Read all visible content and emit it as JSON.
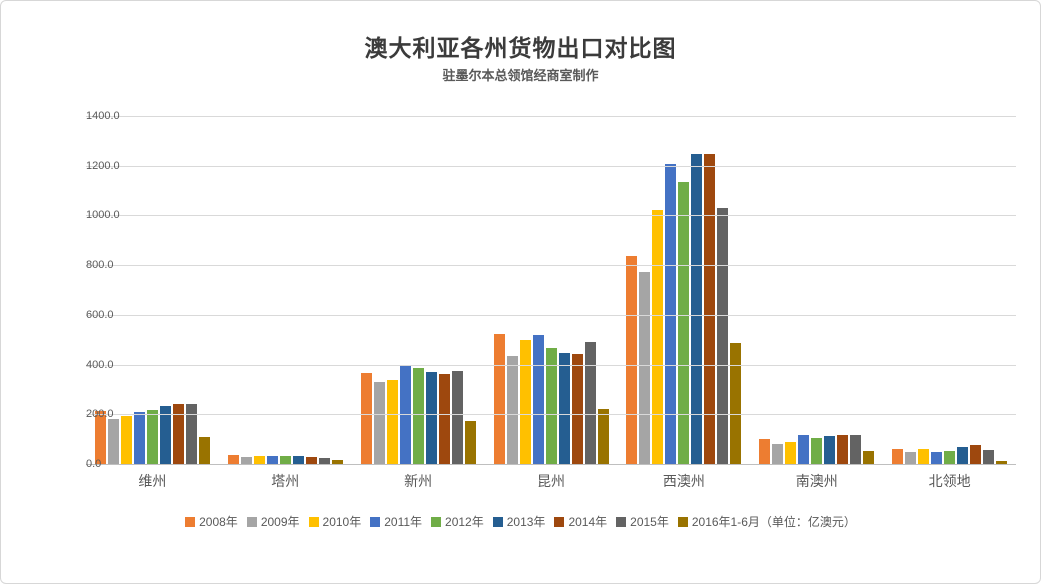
{
  "chart_data": {
    "type": "bar",
    "title": "澳大利亚各州货物出口对比图",
    "subtitle": "驻墨尔本总领馆经商室制作",
    "unit_note": "（单位：亿澳元）",
    "categories": [
      "维州",
      "塔州",
      "新州",
      "昆州",
      "西澳州",
      "南澳州",
      "北领地"
    ],
    "series": [
      {
        "name": "2008年",
        "color": "#ED7D31",
        "values": [
          215,
          35,
          365,
          525,
          838,
          99,
          60
        ]
      },
      {
        "name": "2009年",
        "color": "#A5A5A5",
        "values": [
          180,
          29,
          330,
          435,
          772,
          82,
          50
        ]
      },
      {
        "name": "2010年",
        "color": "#FFC000",
        "values": [
          193,
          32,
          340,
          500,
          1020,
          90,
          59
        ]
      },
      {
        "name": "2011年",
        "color": "#4472C4",
        "values": [
          210,
          32,
          395,
          520,
          1207,
          115,
          50
        ]
      },
      {
        "name": "2012年",
        "color": "#70AD47",
        "values": [
          216,
          33,
          385,
          465,
          1133,
          105,
          53
        ]
      },
      {
        "name": "2013年",
        "color": "#255E91",
        "values": [
          235,
          31,
          370,
          448,
          1248,
          112,
          67
        ]
      },
      {
        "name": "2014年",
        "color": "#9E480E",
        "values": [
          242,
          29,
          362,
          444,
          1246,
          118,
          78
        ]
      },
      {
        "name": "2015年",
        "color": "#636363",
        "values": [
          240,
          26,
          375,
          490,
          1028,
          116,
          56
        ]
      },
      {
        "name": "2016年1-6月",
        "color": "#997300",
        "values": [
          108,
          15,
          172,
          222,
          487,
          54,
          14
        ]
      }
    ],
    "ylim": [
      0,
      1400
    ],
    "ytick_step": 200,
    "ytick_labels": [
      "0.0",
      "200.0",
      "400.0",
      "600.0",
      "800.0",
      "1000.0",
      "1200.0",
      "1400.0"
    ],
    "grid": true,
    "legend_position": "bottom"
  },
  "colors": {
    "background": "#FFFFFF",
    "border": "#D7D7D7",
    "gridline": "#D9D9D9",
    "axisline": "#BFBFBF",
    "title_text": "#3B3B3B",
    "label_text": "#595959"
  }
}
